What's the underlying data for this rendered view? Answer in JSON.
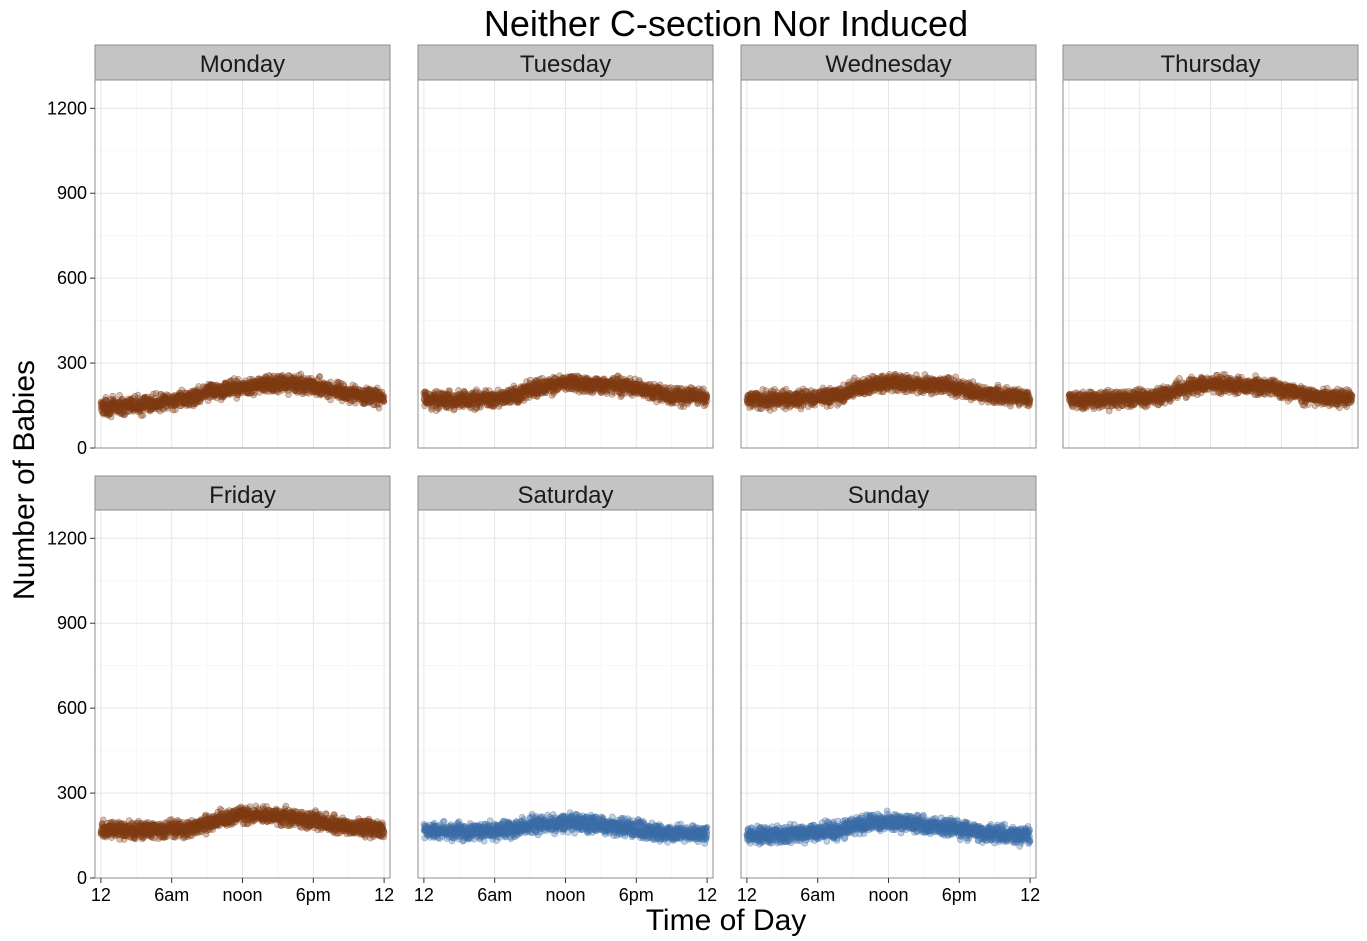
{
  "chart_data": {
    "type": "scatter",
    "title": "Neither C-section Nor Induced",
    "xlabel": "Time of Day",
    "ylabel": "Number of Babies",
    "ylim": [
      0,
      1300
    ],
    "yticks": [
      0,
      300,
      600,
      900,
      1200
    ],
    "xlim": [
      -0.5,
      24.5
    ],
    "xticks": [
      {
        "value": 0,
        "label": "12"
      },
      {
        "value": 6,
        "label": "6am"
      },
      {
        "value": 12,
        "label": "noon"
      },
      {
        "value": 18,
        "label": "6pm"
      },
      {
        "value": 24,
        "label": "12"
      }
    ],
    "grid": true,
    "colors": {
      "weekday": "#7f3b14",
      "weekend": "#3b6ea8"
    },
    "panels": [
      {
        "name": "Monday",
        "group": "weekday",
        "profile_hours": [
          0,
          3,
          6,
          8,
          9,
          12,
          14,
          17,
          19,
          21,
          24
        ],
        "profile_values": [
          145,
          150,
          165,
          180,
          200,
          215,
          225,
          225,
          210,
          190,
          175
        ]
      },
      {
        "name": "Tuesday",
        "group": "weekday",
        "profile_hours": [
          0,
          3,
          6,
          8,
          9,
          12,
          14,
          17,
          19,
          21,
          24
        ],
        "profile_values": [
          170,
          170,
          175,
          185,
          205,
          230,
          225,
          220,
          200,
          185,
          180
        ]
      },
      {
        "name": "Wednesday",
        "group": "weekday",
        "profile_hours": [
          0,
          3,
          6,
          8,
          9,
          12,
          14,
          17,
          19,
          21,
          24
        ],
        "profile_values": [
          170,
          172,
          178,
          185,
          210,
          232,
          225,
          220,
          200,
          185,
          178
        ]
      },
      {
        "name": "Thursday",
        "group": "weekday",
        "profile_hours": [
          0,
          3,
          6,
          8,
          9,
          12,
          14,
          17,
          19,
          21,
          24
        ],
        "profile_values": [
          170,
          170,
          175,
          185,
          205,
          228,
          222,
          215,
          195,
          182,
          178
        ]
      },
      {
        "name": "Friday",
        "group": "weekday",
        "profile_hours": [
          0,
          3,
          6,
          8,
          9,
          12,
          14,
          17,
          19,
          21,
          24
        ],
        "profile_values": [
          170,
          170,
          172,
          180,
          195,
          225,
          220,
          210,
          195,
          180,
          172
        ]
      },
      {
        "name": "Saturday",
        "group": "weekend",
        "profile_hours": [
          0,
          3,
          6,
          8,
          9,
          12,
          14,
          17,
          19,
          21,
          24
        ],
        "profile_values": [
          165,
          165,
          168,
          175,
          185,
          195,
          192,
          178,
          165,
          158,
          152
        ]
      },
      {
        "name": "Sunday",
        "group": "weekend",
        "profile_hours": [
          0,
          3,
          6,
          8,
          9,
          12,
          14,
          17,
          19,
          21,
          24
        ],
        "profile_values": [
          150,
          155,
          160,
          170,
          185,
          198,
          192,
          180,
          165,
          155,
          148
        ]
      }
    ]
  }
}
